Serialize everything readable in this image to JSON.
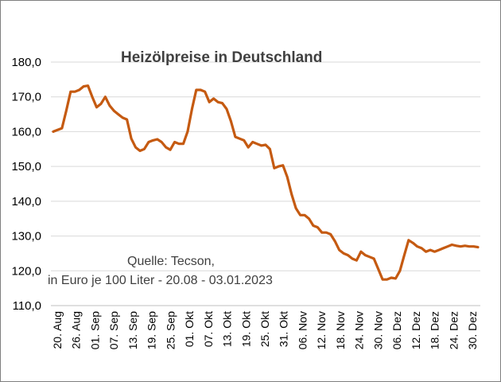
{
  "chart_data": {
    "type": "line",
    "title": "Heizölpreise in Deutschland",
    "annotation": [
      "Quelle: Tecson,",
      "in Euro je 100 Liter - 20.08 - 03.01.2023"
    ],
    "ylim": [
      110,
      180
    ],
    "yticks": [
      "110,0",
      "120,0",
      "130,0",
      "140,0",
      "150,0",
      "160,0",
      "170,0",
      "180,0"
    ],
    "ytick_values": [
      110,
      120,
      130,
      140,
      150,
      160,
      170,
      180
    ],
    "xticks": [
      "20. Aug",
      "26. Aug",
      "01. Sep",
      "07. Sep",
      "13. Sep",
      "19. Sep",
      "25. Sep",
      "01. Okt",
      "07. Okt",
      "13. Okt",
      "19. Okt",
      "25. Okt",
      "31. Okt",
      "06. Nov",
      "12. Nov",
      "18. Nov",
      "24. Nov",
      "30. Nov",
      "06. Dez",
      "12. Dez",
      "18. Dez",
      "24. Dez",
      "30. Dez"
    ],
    "grid": true,
    "color": "#c55a11",
    "series": [
      {
        "values": [
          160.0,
          160.5,
          161.0,
          166.0,
          171.5,
          171.5,
          172.0,
          173.0,
          173.2,
          170.0,
          167.0,
          168.0,
          170.0,
          167.5,
          166.0,
          165.0,
          164.0,
          163.5,
          158.0,
          155.5,
          154.5,
          155.0,
          157.0,
          157.5,
          157.8,
          157.0,
          155.5,
          154.8,
          157.0,
          156.5,
          156.5,
          160.0,
          166.5,
          172.0,
          172.0,
          171.5,
          168.5,
          169.5,
          168.5,
          168.2,
          166.5,
          163.0,
          158.5,
          158.0,
          157.5,
          155.5,
          157.0,
          156.5,
          156.0,
          156.2,
          155.0,
          149.5,
          150.0,
          150.3,
          147.0,
          142.0,
          138.0,
          136.0,
          136.0,
          135.0,
          133.0,
          132.5,
          131.0,
          131.0,
          130.5,
          128.5,
          126.0,
          125.0,
          124.5,
          123.5,
          123.0,
          125.5,
          124.5,
          124.0,
          123.5,
          120.5,
          117.5,
          117.5,
          118.0,
          117.8,
          120.0,
          124.5,
          128.8,
          128.0,
          127.0,
          126.5,
          125.5,
          126.0,
          125.5,
          126.0,
          126.5,
          127.0,
          127.5,
          127.2,
          127.0,
          127.2,
          127.0,
          127.0,
          126.8
        ]
      }
    ]
  }
}
